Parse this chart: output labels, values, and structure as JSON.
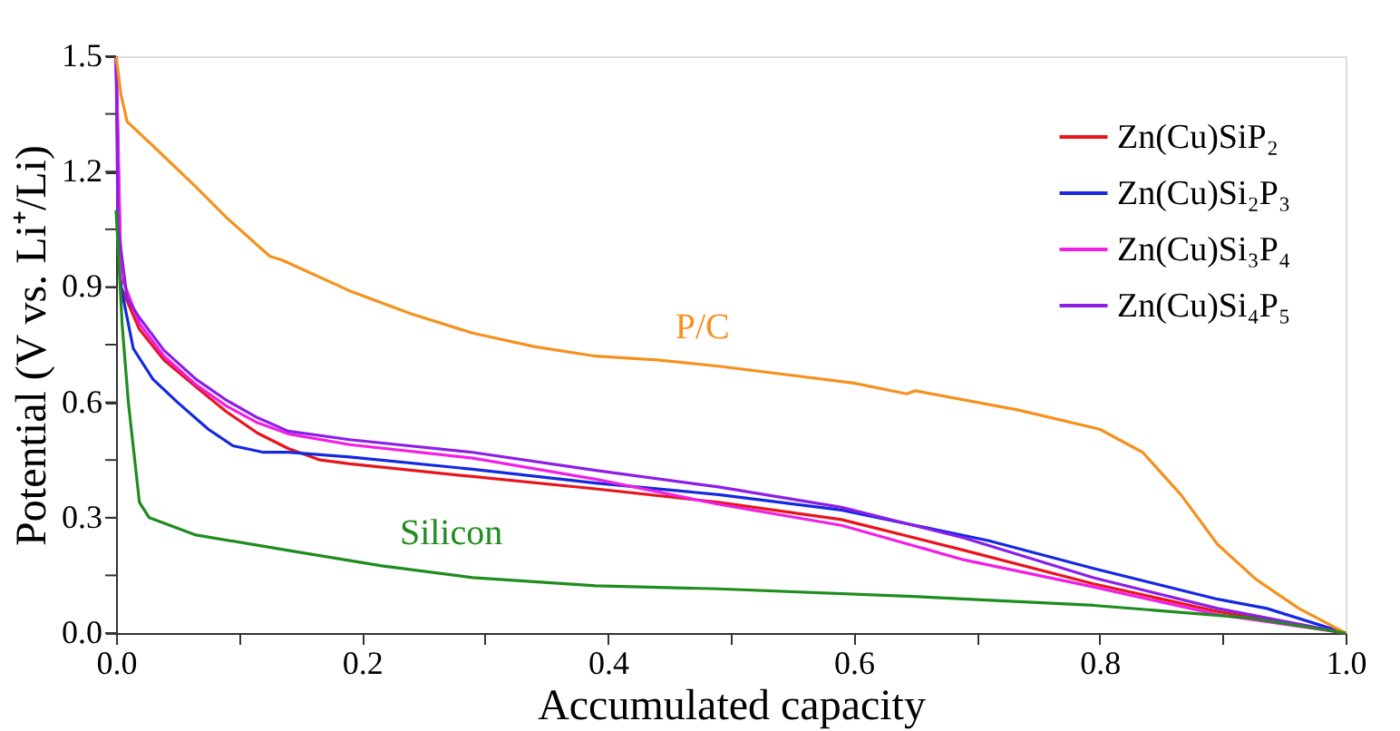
{
  "chart_data": {
    "type": "line",
    "xlabel": "Accumulated capacity",
    "ylabel": "Potential (V vs. Li⁺/Li)",
    "xlim": [
      0,
      1
    ],
    "ylim": [
      0,
      1.5
    ],
    "xticks": [
      {
        "value": 0,
        "label": "0.0"
      },
      {
        "value": 0.1,
        "label": null
      },
      {
        "value": 0.2,
        "label": "0.2"
      },
      {
        "value": 0.3,
        "label": null
      },
      {
        "value": 0.4,
        "label": "0.4"
      },
      {
        "value": 0.5,
        "label": null
      },
      {
        "value": 0.6,
        "label": "0.6"
      },
      {
        "value": 0.7,
        "label": null
      },
      {
        "value": 0.8,
        "label": "0.8"
      },
      {
        "value": 0.9,
        "label": null
      },
      {
        "value": 1,
        "label": "1.0"
      }
    ],
    "yticks": [
      {
        "value": 0,
        "label": "0.0"
      },
      {
        "value": 0.15,
        "label": null
      },
      {
        "value": 0.3,
        "label": "0.3"
      },
      {
        "value": 0.45,
        "label": null
      },
      {
        "value": 0.6,
        "label": "0.6"
      },
      {
        "value": 0.75,
        "label": null
      },
      {
        "value": 0.9,
        "label": "0.9"
      },
      {
        "value": 1.05,
        "label": null
      },
      {
        "value": 1.2,
        "label": "1.2"
      },
      {
        "value": 1.35,
        "label": null
      },
      {
        "value": 1.5,
        "label": "1.5"
      }
    ],
    "grid": false,
    "legend": "top right",
    "marker": "none",
    "line_style": "solid",
    "series": [
      {
        "name": "Zn(Cu)SiP₂",
        "color": "#e8141c",
        "x": [
          0,
          0.004,
          0.019,
          0.039,
          0.065,
          0.09,
          0.115,
          0.14,
          0.166,
          0.19,
          0.29,
          0.39,
          0.49,
          0.59,
          0.69,
          0.795,
          0.896,
          1.0
        ],
        "values": [
          1.5,
          0.9,
          0.79,
          0.71,
          0.64,
          0.575,
          0.52,
          0.48,
          0.45,
          0.44,
          0.407,
          0.375,
          0.34,
          0.295,
          0.215,
          0.128,
          0.056,
          0
        ]
      },
      {
        "name": "Zn(Cu)Si₂P₃",
        "color": "#1428e0",
        "x": [
          0,
          0.002,
          0.004,
          0.014,
          0.03,
          0.05,
          0.075,
          0.095,
          0.12,
          0.14,
          0.19,
          0.29,
          0.39,
          0.49,
          0.59,
          0.71,
          0.795,
          0.896,
          0.936,
          1.0
        ],
        "values": [
          1.5,
          1.14,
          0.9,
          0.74,
          0.66,
          0.6,
          0.53,
          0.487,
          0.47,
          0.47,
          0.458,
          0.426,
          0.39,
          0.36,
          0.32,
          0.24,
          0.168,
          0.088,
          0.064,
          0
        ]
      },
      {
        "name": "Zn(Cu)Si₃P₄",
        "color": "#f01ee6",
        "x": [
          0,
          0.0015,
          0.004,
          0.019,
          0.039,
          0.065,
          0.09,
          0.115,
          0.14,
          0.19,
          0.29,
          0.39,
          0.49,
          0.59,
          0.69,
          0.795,
          0.896,
          1.0
        ],
        "values": [
          1.5,
          1.3,
          0.93,
          0.805,
          0.72,
          0.646,
          0.59,
          0.547,
          0.518,
          0.49,
          0.455,
          0.4,
          0.335,
          0.28,
          0.19,
          0.12,
          0.048,
          0
        ]
      },
      {
        "name": "Zn(Cu)Si₄P₅",
        "color": "#8c1ee6",
        "x": [
          0,
          0.0015,
          0.009,
          0.019,
          0.039,
          0.065,
          0.09,
          0.115,
          0.14,
          0.19,
          0.29,
          0.39,
          0.49,
          0.59,
          0.69,
          0.795,
          0.896,
          1.0
        ],
        "values": [
          1.5,
          1.06,
          0.87,
          0.82,
          0.735,
          0.66,
          0.605,
          0.56,
          0.525,
          0.503,
          0.47,
          0.423,
          0.38,
          0.327,
          0.247,
          0.144,
          0.064,
          0
        ]
      },
      {
        "color": "#f5911e",
        "x": [
          0,
          0.004,
          0.009,
          0.029,
          0.065,
          0.09,
          0.125,
          0.135,
          0.19,
          0.24,
          0.29,
          0.34,
          0.39,
          0.44,
          0.49,
          0.6,
          0.643,
          0.65,
          0.734,
          0.8,
          0.835,
          0.866,
          0.896,
          0.927,
          0.962,
          1.0
        ],
        "values": [
          1.5,
          1.4,
          1.33,
          1.27,
          1.16,
          1.08,
          0.98,
          0.97,
          0.89,
          0.83,
          0.78,
          0.745,
          0.72,
          0.71,
          0.694,
          0.65,
          0.622,
          0.63,
          0.58,
          0.53,
          0.47,
          0.36,
          0.23,
          0.14,
          0.064,
          0
        ]
      },
      {
        "color": "#1e8c1e",
        "x": [
          0,
          0.005,
          0.01,
          0.019,
          0.027,
          0.065,
          0.14,
          0.216,
          0.29,
          0.39,
          0.49,
          0.643,
          0.795,
          0.92,
          1.0
        ],
        "values": [
          1.1,
          0.8,
          0.6,
          0.34,
          0.3,
          0.255,
          0.215,
          0.175,
          0.144,
          0.123,
          0.115,
          0.096,
          0.072,
          0.04,
          0
        ]
      }
    ],
    "annotations": [
      "P/C",
      "Silicon"
    ]
  }
}
